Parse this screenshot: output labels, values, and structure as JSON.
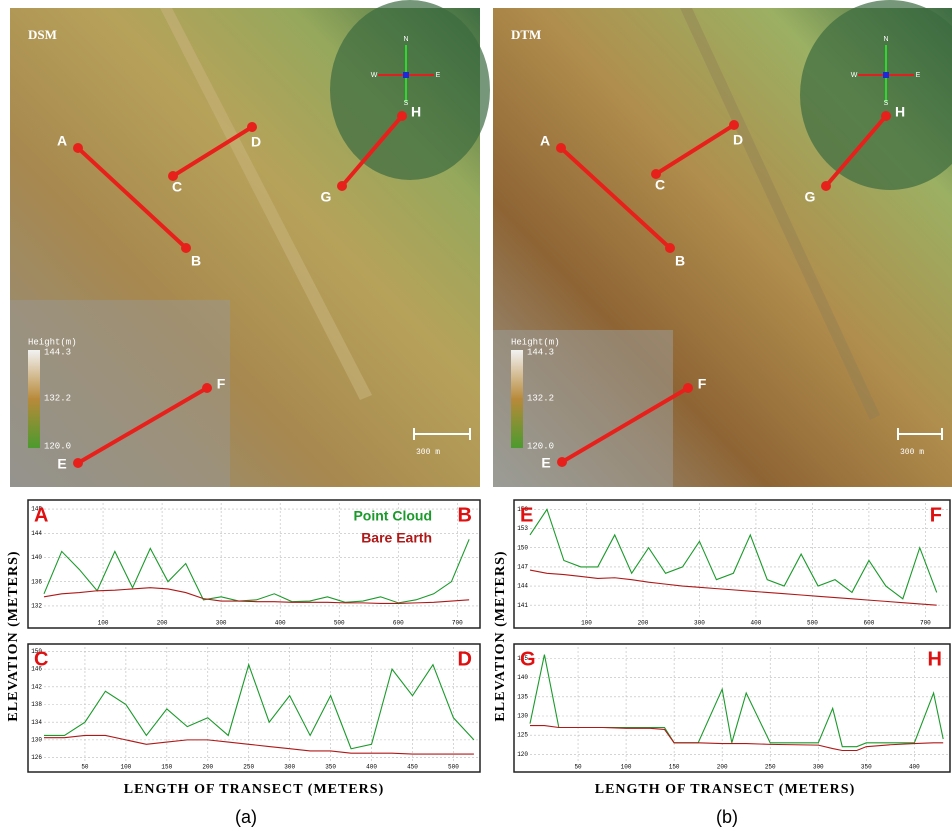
{
  "panels": [
    {
      "label": "DSM",
      "legend_title": "Height(m)",
      "legend_ticks": [
        "144.3",
        "132.2",
        "120.0"
      ],
      "scale": "300 m",
      "compass": [
        "N",
        "S",
        "W",
        "E"
      ],
      "points": [
        "A",
        "B",
        "C",
        "D",
        "E",
        "F",
        "G",
        "H"
      ]
    },
    {
      "label": "DTM",
      "legend_title": "Height(m)",
      "legend_ticks": [
        "144.3",
        "132.2",
        "120.0"
      ],
      "scale": "300 m",
      "compass": [
        "N",
        "S",
        "W",
        "E"
      ],
      "points": [
        "A",
        "B",
        "C",
        "D",
        "E",
        "F",
        "G",
        "H"
      ]
    }
  ],
  "chart_data": [
    {
      "type": "line",
      "start_label": "A",
      "end_label": "B",
      "grid": true,
      "x": [
        0,
        30,
        60,
        90,
        120,
        150,
        180,
        210,
        240,
        270,
        300,
        330,
        360,
        390,
        420,
        450,
        480,
        510,
        540,
        570,
        600,
        630,
        660,
        690,
        720
      ],
      "series": [
        {
          "name": "Point Cloud",
          "color": "#1a9a2a",
          "values": [
            134,
            141,
            138,
            134.5,
            141,
            135,
            141.5,
            136,
            139,
            133,
            133.5,
            132.8,
            133,
            134,
            132.7,
            132.8,
            133.5,
            132.6,
            132.8,
            133.5,
            132.5,
            133,
            134,
            136,
            143
          ]
        },
        {
          "name": "Bare Earth",
          "color": "#b01818",
          "values": [
            133.5,
            134,
            134.2,
            134.5,
            134.6,
            134.8,
            135,
            134.8,
            134.2,
            133.2,
            132.8,
            132.8,
            132.7,
            132.7,
            132.6,
            132.6,
            132.6,
            132.5,
            132.5,
            132.4,
            132.4,
            132.5,
            132.6,
            132.8,
            133
          ]
        }
      ],
      "xlim": [
        0,
        735
      ],
      "ylim": [
        130,
        149
      ],
      "xticks": [
        100,
        200,
        300,
        400,
        500,
        600,
        700
      ],
      "yticks": [
        132,
        136,
        140,
        144,
        148
      ]
    },
    {
      "type": "line",
      "start_label": "C",
      "end_label": "D",
      "grid": true,
      "x": [
        0,
        25,
        50,
        75,
        100,
        125,
        150,
        175,
        200,
        225,
        250,
        275,
        300,
        325,
        350,
        375,
        400,
        425,
        450,
        475,
        500,
        525
      ],
      "series": [
        {
          "color": "#1a9a2a",
          "values": [
            131,
            131,
            134,
            141,
            138,
            131,
            137,
            133,
            135,
            131,
            147,
            134,
            140,
            131,
            140,
            128,
            129,
            146,
            140,
            147,
            135,
            130
          ]
        },
        {
          "color": "#b01818",
          "values": [
            130.5,
            130.5,
            131,
            131,
            130,
            129,
            129.5,
            130,
            130,
            129.5,
            129,
            128.5,
            128,
            127.5,
            127.5,
            127,
            127,
            127,
            126.8,
            126.8,
            126.8,
            126.8
          ]
        }
      ],
      "xlim": [
        0,
        530
      ],
      "ylim": [
        125,
        151
      ],
      "xticks": [
        50,
        100,
        150,
        200,
        250,
        300,
        350,
        400,
        450,
        500
      ],
      "yticks": [
        126,
        130,
        134,
        138,
        142,
        146,
        150
      ]
    },
    {
      "type": "line",
      "start_label": "E",
      "end_label": "F",
      "grid": true,
      "x": [
        0,
        30,
        60,
        90,
        120,
        150,
        180,
        210,
        240,
        270,
        300,
        330,
        360,
        390,
        420,
        450,
        480,
        510,
        540,
        570,
        600,
        630,
        660,
        690,
        720
      ],
      "series": [
        {
          "color": "#1a9a2a",
          "values": [
            152,
            156,
            148,
            147,
            147,
            152,
            146,
            150,
            146,
            147,
            151,
            145,
            146,
            152,
            145,
            144,
            149,
            144,
            145,
            143,
            148,
            144,
            142,
            150,
            143
          ]
        },
        {
          "color": "#b01818",
          "values": [
            146.5,
            146,
            145.8,
            145.5,
            145.2,
            145.3,
            145,
            144.6,
            144.3,
            144,
            143.8,
            143.6,
            143.4,
            143.2,
            143,
            142.8,
            142.6,
            142.4,
            142.2,
            142,
            141.8,
            141.6,
            141.4,
            141.2,
            141
          ]
        }
      ],
      "xlim": [
        0,
        740
      ],
      "ylim": [
        139,
        157
      ],
      "xticks": [
        100,
        200,
        300,
        400,
        500,
        600,
        700
      ],
      "yticks": [
        141,
        144,
        147,
        150,
        153,
        156
      ]
    },
    {
      "type": "line",
      "start_label": "G",
      "end_label": "H",
      "grid": true,
      "x": [
        0,
        15,
        30,
        50,
        75,
        100,
        125,
        140,
        150,
        175,
        200,
        210,
        225,
        250,
        275,
        300,
        315,
        325,
        340,
        350,
        375,
        400,
        420,
        430
      ],
      "series": [
        {
          "color": "#1a9a2a",
          "values": [
            128,
            146,
            127,
            127,
            127,
            127,
            127,
            127,
            123,
            123,
            137,
            123,
            136,
            123,
            123,
            123,
            132,
            122,
            122,
            123,
            123,
            123,
            136,
            124
          ]
        },
        {
          "color": "#b01818",
          "values": [
            127.5,
            127.5,
            127,
            127,
            127,
            126.8,
            126.8,
            126.5,
            123,
            123,
            122.8,
            122.8,
            122.8,
            122.6,
            122.5,
            122.4,
            121.5,
            121,
            121,
            122,
            122.5,
            122.8,
            123,
            123
          ]
        }
      ],
      "xlim": [
        0,
        435
      ],
      "ylim": [
        118,
        148
      ],
      "xticks": [
        50,
        100,
        150,
        200,
        250,
        300,
        350,
        400
      ],
      "yticks": [
        120,
        125,
        130,
        135,
        140,
        145
      ]
    }
  ],
  "y_axis_label": "ELEVATION (METERS)",
  "x_axis_label": "LENGTH OF TRANSECT (METERS)",
  "captions": [
    "(a)",
    "(b)"
  ]
}
